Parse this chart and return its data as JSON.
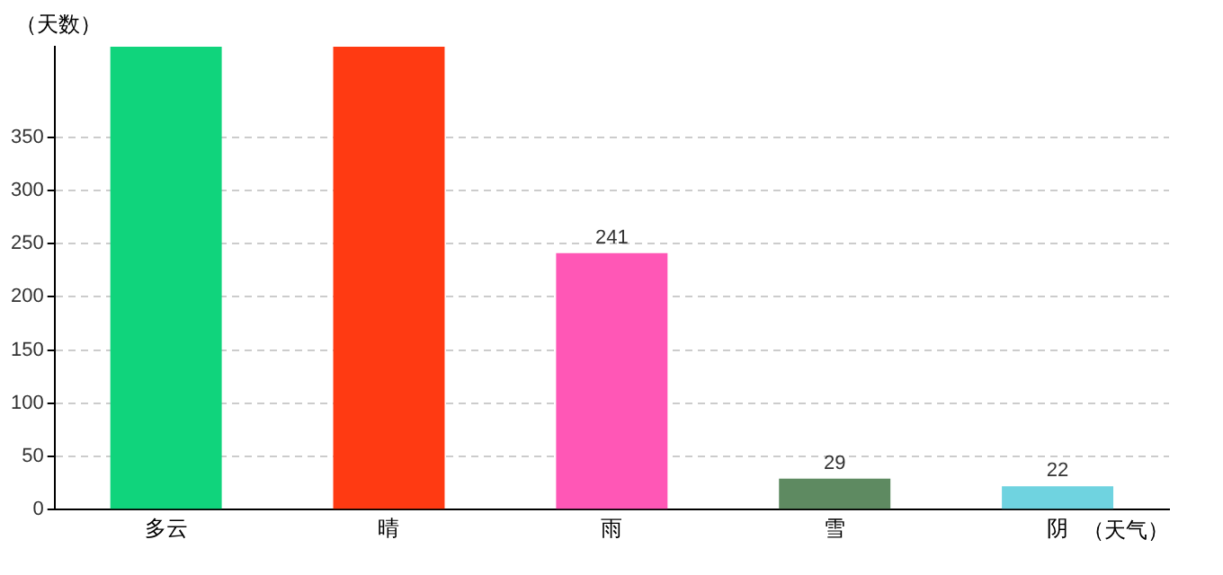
{
  "chart_data": {
    "type": "bar",
    "xlabel": "（天气）",
    "ylabel": "（天数）",
    "categories": [
      "多云",
      "晴",
      "雨",
      "雪",
      "阴"
    ],
    "values": [
      435,
      435,
      241,
      29,
      22
    ],
    "colors": [
      "#10d47c",
      "#ff3a12",
      "#ff57b6",
      "#5e8a61",
      "#6fd3e0"
    ],
    "value_labels": [
      null,
      null,
      "241",
      "29",
      "22"
    ],
    "ylim": [
      0,
      435
    ],
    "yticks": [
      0,
      50,
      100,
      150,
      200,
      250,
      300,
      350
    ],
    "grid": "y",
    "legend": false
  }
}
